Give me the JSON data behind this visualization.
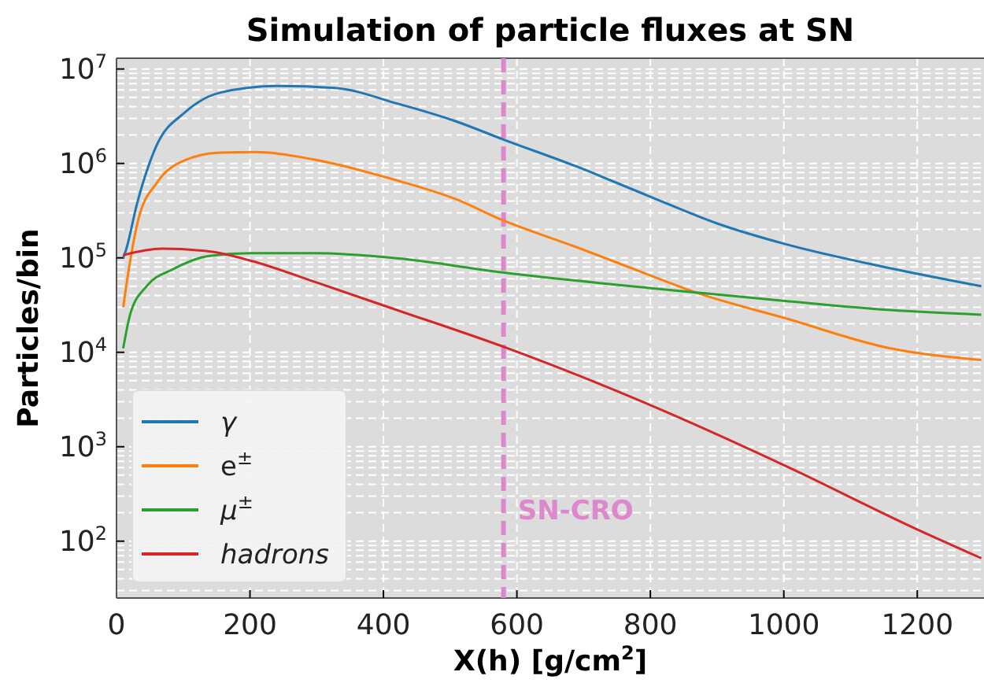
{
  "chart_data": {
    "type": "line",
    "title": "Simulation of particle fluxes at SN",
    "xlabel": "X(h) [g/cm$^{2}$]",
    "ylabel": "Particles/bin",
    "log": "y",
    "grid": true,
    "legend": "bottom left",
    "line_style": "solid",
    "marker": "none",
    "xlim": [
      0,
      1300
    ],
    "xticks": [
      0,
      200,
      400,
      600,
      800,
      1000,
      1200
    ],
    "ylim": [
      25,
      13000000
    ],
    "yticks": [
      {
        "value": 100,
        "label": "10$^{2}$"
      },
      {
        "value": 1000,
        "label": "10$^{3}$"
      },
      {
        "value": 10000,
        "label": "10$^{4}$"
      },
      {
        "value": 100000,
        "label": "10$^{5}$"
      },
      {
        "value": 1000000,
        "label": "10$^{6}$"
      },
      {
        "value": 10000000,
        "label": "10$^{7}$"
      }
    ],
    "ref_lines": [
      {
        "axis": "x",
        "value": 580,
        "label": "SN-CRO",
        "color": "#dd88cc",
        "line_style": "dashed"
      }
    ],
    "series": [
      {
        "name": "γ",
        "color": "#1f77b4",
        "x": [
          10,
          14,
          31,
          61,
          101,
          155,
          240,
          327,
          421,
          508,
          579,
          689,
          798,
          901,
          1002,
          1120,
          1296
        ],
        "values": [
          100000,
          120000,
          380000,
          1600000,
          3400000,
          5600000,
          6600000,
          6300000,
          4300000,
          2800000,
          1800000,
          930000,
          450000,
          230000,
          140000,
          89000,
          50000
        ]
      },
      {
        "name": "e$^{±}$",
        "color": "#ff7f0e",
        "x": [
          10,
          19,
          33,
          61,
          101,
          155,
          210,
          296,
          414,
          508,
          579,
          689,
          798,
          868,
          1002,
          1160,
          1296
        ],
        "values": [
          30000,
          80000,
          260000,
          630000,
          1070000,
          1300000,
          1320000,
          1100000,
          680000,
          420000,
          250000,
          130000,
          66000,
          43000,
          23000,
          11000,
          8300
        ]
      },
      {
        "name": "μ$^{±}$",
        "color": "#2ca02c",
        "x": [
          10,
          21,
          45,
          85,
          139,
          202,
          296,
          414,
          579,
          798,
          868,
          1002,
          1160,
          1296
        ],
        "values": [
          11000,
          26000,
          50000,
          76000,
          105000,
          112000,
          112000,
          100000,
          70000,
          48000,
          43000,
          35000,
          28000,
          25000
        ]
      },
      {
        "name": "hadrons",
        "color": "#d62728",
        "x": [
          10,
          68,
          139,
          202,
          296,
          414,
          579,
          798,
          1002,
          1198,
          1296
        ],
        "values": [
          107000,
          125000,
          117000,
          93000,
          56000,
          29000,
          11500,
          2800,
          630,
          135,
          66
        ]
      }
    ]
  }
}
